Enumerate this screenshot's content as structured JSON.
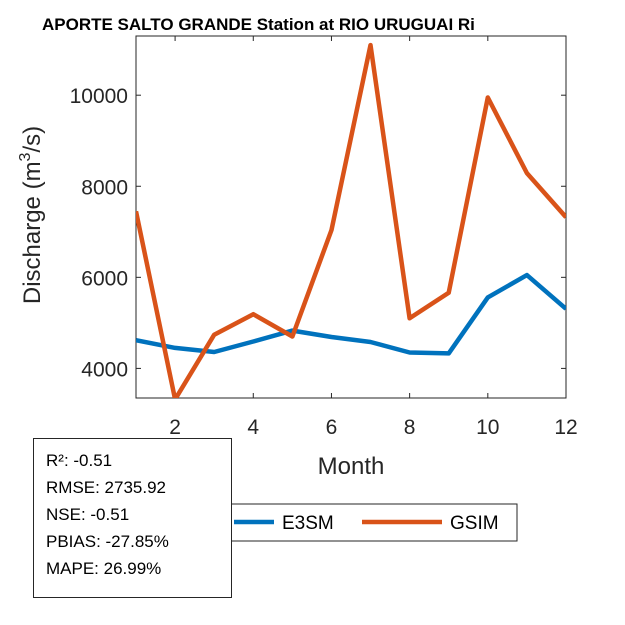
{
  "chart_data": {
    "type": "line",
    "title": "APORTE SALTO GRANDE  Station at  RIO URUGUAI  Ri",
    "xlabel": "Month",
    "ylabel_prefix": "Discharge (m",
    "ylabel_sup": "3",
    "ylabel_suffix": "/s)",
    "xlim": [
      1,
      12
    ],
    "ylim": [
      3350,
      11300
    ],
    "xticks": [
      2,
      4,
      6,
      8,
      10,
      12
    ],
    "yticks": [
      4000,
      6000,
      8000,
      10000
    ],
    "x": [
      1,
      2,
      3,
      4,
      5,
      6,
      7,
      8,
      9,
      10,
      11,
      12
    ],
    "series": [
      {
        "name": "E3SM",
        "color": "#0072BD",
        "values": [
          4620,
          4450,
          4360,
          4590,
          4830,
          4690,
          4580,
          4350,
          4330,
          5560,
          6050,
          5310
        ]
      },
      {
        "name": "GSIM",
        "color": "#D95319",
        "values": [
          7450,
          3320,
          4740,
          5190,
          4700,
          7040,
          11100,
          5100,
          5660,
          9950,
          8290,
          7320
        ]
      }
    ],
    "legend_position": "bottom"
  },
  "stats": [
    "R²: -0.51",
    "RMSE: 2735.92",
    "NSE: -0.51",
    "PBIAS: -27.85%",
    "MAPE: 26.99%"
  ]
}
